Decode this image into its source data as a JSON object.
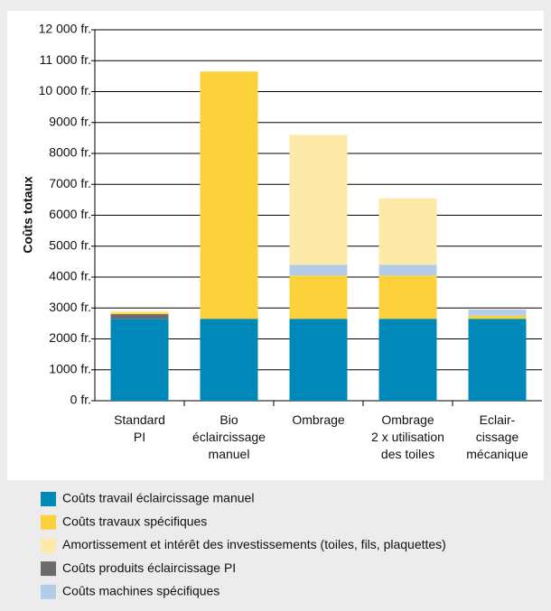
{
  "chart_data": {
    "type": "stacked_bar",
    "y_label": "Coûts totaux",
    "categories": [
      [
        "Standard",
        "PI"
      ],
      [
        "Bio",
        "éclaircissage",
        "manuel"
      ],
      [
        "Ombrage"
      ],
      [
        "Ombrage",
        "2 x utilisation",
        "des toiles"
      ],
      [
        "Eclair-",
        "cissage",
        "mécanique"
      ]
    ],
    "series": [
      {
        "name": "Coûts travail éclaircissage manuel",
        "color": "#0088b8",
        "values": [
          2650,
          2650,
          2650,
          2650,
          2650
        ]
      },
      {
        "name": "Coûts travaux spécifiques",
        "color": "#fdd13c",
        "values": [
          50,
          8000,
          1400,
          1400,
          100
        ]
      },
      {
        "name": "Amortissement et intérêt des investissements (toiles, fils, plaquettes)",
        "color": "#fdeaa8",
        "values": [
          50,
          0,
          4200,
          2150,
          0
        ]
      },
      {
        "name": "Coûts produits éclaircissage PI",
        "color": "#6b6b6b",
        "values": [
          150,
          0,
          0,
          0,
          0
        ]
      },
      {
        "name": "Coûts machines spécifiques",
        "color": "#b4cde6",
        "values": [
          0,
          0,
          350,
          350,
          200
        ]
      }
    ],
    "ylim": [
      0,
      12000
    ],
    "yticks": [
      {
        "value": 0,
        "label": "0 fr."
      },
      {
        "value": 1000,
        "label": "1000 fr."
      },
      {
        "value": 2000,
        "label": "2000 fr."
      },
      {
        "value": 3000,
        "label": "3000 fr."
      },
      {
        "value": 4000,
        "label": "4000 fr."
      },
      {
        "value": 5000,
        "label": "5000 fr."
      },
      {
        "value": 6000,
        "label": "6000 fr."
      },
      {
        "value": 7000,
        "label": "7000 fr."
      },
      {
        "value": 8000,
        "label": "8000 fr."
      },
      {
        "value": 9000,
        "label": "9000 fr."
      },
      {
        "value": 10000,
        "label": "10 000 fr."
      },
      {
        "value": 11000,
        "label": "11 000 fr."
      },
      {
        "value": 12000,
        "label": "12 000 fr."
      }
    ],
    "grid": true
  }
}
